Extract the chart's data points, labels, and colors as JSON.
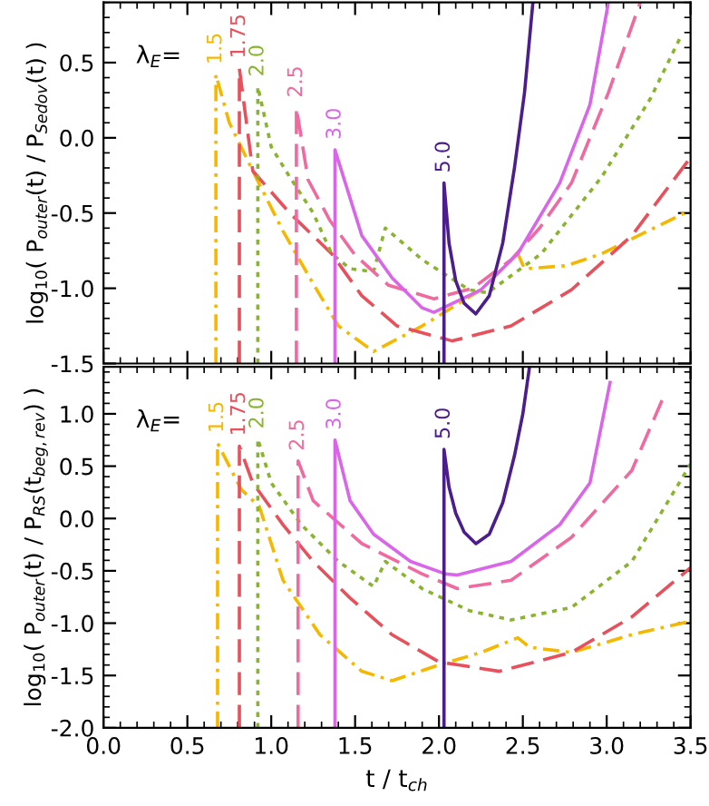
{
  "chart_data": [
    {
      "type": "line",
      "ylabel": "log$_{10}$( P$_{outer}$(t) / P$_{Sedov}$(t) )",
      "annotations": [
        "λ$_{E}$="
      ],
      "tick_labels": "y",
      "xlim": [
        0,
        3.5
      ],
      "xticks": [
        {
          "value": 0,
          "label": null
        },
        {
          "value": 0.5,
          "label": null
        },
        {
          "value": 1,
          "label": null
        },
        {
          "value": 1.5,
          "label": null
        },
        {
          "value": 2,
          "label": null
        },
        {
          "value": 2.5,
          "label": null
        },
        {
          "value": 3,
          "label": null
        },
        {
          "value": 3.5,
          "label": null
        }
      ],
      "ylim": [
        -1.5,
        0.9
      ],
      "yticks": [
        {
          "value": -1.5,
          "label": "-1.5"
        },
        {
          "value": -1,
          "label": "-1.0"
        },
        {
          "value": -0.5,
          "label": "-0.5"
        },
        {
          "value": 0,
          "label": "0.0"
        },
        {
          "value": 0.5,
          "label": "0.5"
        }
      ],
      "series": [
        {
          "name": "1.5",
          "color": "#f5b800",
          "line_style": "dashdot",
          "x": [
            0.67,
            0.67,
            0.75,
            0.89,
            1.07,
            1.25,
            1.4,
            1.61,
            1.9,
            2.25,
            2.47,
            2.51,
            2.76,
            2.97,
            3.5
          ],
          "values": [
            -1.5,
            0.42,
            0.1,
            -0.22,
            -0.62,
            -0.97,
            -1.25,
            -1.42,
            -1.25,
            -1.01,
            -0.77,
            -0.87,
            -0.85,
            -0.77,
            -0.48
          ]
        },
        {
          "name": "1.75",
          "color": "#e8505b",
          "line_style": "dashed",
          "x": [
            0.81,
            0.81,
            0.89,
            1.11,
            1.36,
            1.54,
            1.75,
            2.08,
            2.43,
            2.79,
            3.15,
            3.5
          ],
          "values": [
            -1.5,
            0.46,
            -0.22,
            -0.5,
            -0.77,
            -1.05,
            -1.25,
            -1.35,
            -1.25,
            -1.01,
            -0.65,
            -0.13
          ]
        },
        {
          "name": "2.0",
          "color": "#8ab42e",
          "line_style": "dotted",
          "x": [
            0.92,
            0.92,
            1.0,
            1.11,
            1.25,
            1.36,
            1.47,
            1.61,
            1.68,
            1.9,
            2.18,
            2.29,
            2.61,
            2.97,
            3.26,
            3.44
          ],
          "values": [
            -1.5,
            0.34,
            -0.06,
            -0.26,
            -0.5,
            -0.77,
            -0.87,
            -0.89,
            -0.6,
            -0.81,
            -1.01,
            -1.03,
            -0.77,
            -0.26,
            0.26,
            0.67
          ]
        },
        {
          "name": "2.5",
          "color": "#f06aa0",
          "line_style": "dashed",
          "x": [
            1.15,
            1.15,
            1.22,
            1.35,
            1.5,
            1.7,
            1.97,
            2.2,
            2.43,
            2.6,
            2.79,
            3.01,
            3.2
          ],
          "values": [
            -1.5,
            0.2,
            -0.28,
            -0.55,
            -0.78,
            -0.98,
            -1.07,
            -1.0,
            -0.81,
            -0.6,
            -0.3,
            0.3,
            0.9
          ]
        },
        {
          "name": "3.0",
          "color": "#d966e8",
          "line_style": "solid",
          "x": [
            1.38,
            1.38,
            1.54,
            1.72,
            1.9,
            1.97,
            2.25,
            2.47,
            2.72,
            2.9,
            3.01
          ],
          "values": [
            -1.5,
            -0.08,
            -0.65,
            -0.93,
            -1.13,
            -1.16,
            -1.01,
            -0.77,
            -0.3,
            0.22,
            0.9
          ]
        },
        {
          "name": "5.0",
          "color": "#4b1e8c",
          "line_style": "solid",
          "x": [
            2.03,
            2.03,
            2.06,
            2.1,
            2.15,
            2.22,
            2.3,
            2.38,
            2.45,
            2.51,
            2.56
          ],
          "values": [
            -1.5,
            -0.3,
            -0.7,
            -0.95,
            -1.1,
            -1.17,
            -1.05,
            -0.7,
            -0.2,
            0.3,
            0.9
          ]
        }
      ]
    },
    {
      "type": "line",
      "xlabel": "t / t$_{ch}$",
      "ylabel": "log$_{10}$( P$_{outer}$(t) / P$_{RS}$(t$_{beg,rev}$) )",
      "annotations": [
        "λ$_{E}$="
      ],
      "xlim": [
        0,
        3.5
      ],
      "xticks": [
        {
          "value": 0,
          "label": "0.0"
        },
        {
          "value": 0.5,
          "label": "0.5"
        },
        {
          "value": 1,
          "label": "1.0"
        },
        {
          "value": 1.5,
          "label": "1.5"
        },
        {
          "value": 2,
          "label": "2.0"
        },
        {
          "value": 2.5,
          "label": "2.5"
        },
        {
          "value": 3,
          "label": "3.0"
        },
        {
          "value": 3.5,
          "label": "3.5"
        }
      ],
      "ylim": [
        -2,
        1.45
      ],
      "yticks": [
        {
          "value": -2,
          "label": "-2.0"
        },
        {
          "value": -1.5,
          "label": "-1.5"
        },
        {
          "value": -1,
          "label": "-1.0"
        },
        {
          "value": -0.5,
          "label": "-0.5"
        },
        {
          "value": 0,
          "label": "0.0"
        },
        {
          "value": 0.5,
          "label": "0.5"
        },
        {
          "value": 1,
          "label": "1.0"
        }
      ],
      "series": [
        {
          "name": "1.5",
          "color": "#f5b800",
          "line_style": "dashdot",
          "x": [
            0.68,
            0.68,
            0.82,
            0.93,
            1.07,
            1.29,
            1.54,
            1.72,
            2.0,
            2.25,
            2.47,
            2.54,
            2.79,
            3.15,
            3.5
          ],
          "values": [
            -2,
            0.72,
            0.28,
            0.11,
            -0.59,
            -1.11,
            -1.46,
            -1.55,
            -1.4,
            -1.28,
            -1.14,
            -1.23,
            -1.28,
            -1.11,
            -0.98
          ]
        },
        {
          "name": "1.75",
          "color": "#e8505b",
          "line_style": "dashed",
          "x": [
            0.81,
            0.81,
            0.89,
            1.07,
            1.25,
            1.47,
            1.72,
            2.0,
            2.36,
            2.79,
            3.15,
            3.5
          ],
          "values": [
            -2,
            0.69,
            0.34,
            -0.06,
            -0.41,
            -0.76,
            -1.11,
            -1.37,
            -1.46,
            -1.28,
            -0.94,
            -0.47
          ]
        },
        {
          "name": "2.0",
          "color": "#8ab42e",
          "line_style": "dotted",
          "x": [
            0.92,
            0.92,
            1.0,
            1.18,
            1.4,
            1.61,
            1.68,
            1.9,
            2.18,
            2.43,
            2.79,
            3.15,
            3.5
          ],
          "values": [
            -2,
            0.76,
            0.34,
            -0.06,
            -0.41,
            -0.65,
            -0.41,
            -0.67,
            -0.88,
            -0.97,
            -0.85,
            -0.41,
            0.52
          ]
        },
        {
          "name": "2.5",
          "color": "#f06aa0",
          "line_style": "dashed",
          "x": [
            1.16,
            1.16,
            1.25,
            1.54,
            1.9,
            2.11,
            2.43,
            2.79,
            3.15,
            3.33
          ],
          "values": [
            -2,
            0.55,
            0.17,
            -0.24,
            -0.53,
            -0.67,
            -0.59,
            -0.18,
            0.46,
            1.13
          ]
        },
        {
          "name": "3.0",
          "color": "#d966e8",
          "line_style": "solid",
          "x": [
            1.38,
            1.38,
            1.47,
            1.61,
            1.83,
            2.04,
            2.11,
            2.43,
            2.72,
            2.9,
            3.02
          ],
          "values": [
            -2,
            0.75,
            0.17,
            -0.15,
            -0.41,
            -0.53,
            -0.54,
            -0.41,
            -0.06,
            0.34,
            1.3
          ]
        },
        {
          "name": "5.0",
          "color": "#4b1e8c",
          "line_style": "solid",
          "x": [
            2.03,
            2.03,
            2.06,
            2.1,
            2.15,
            2.22,
            2.3,
            2.38,
            2.45,
            2.5,
            2.54
          ],
          "values": [
            -2,
            0.66,
            0.3,
            0.05,
            -0.13,
            -0.24,
            -0.15,
            0.15,
            0.6,
            1.0,
            1.45
          ]
        }
      ]
    }
  ]
}
